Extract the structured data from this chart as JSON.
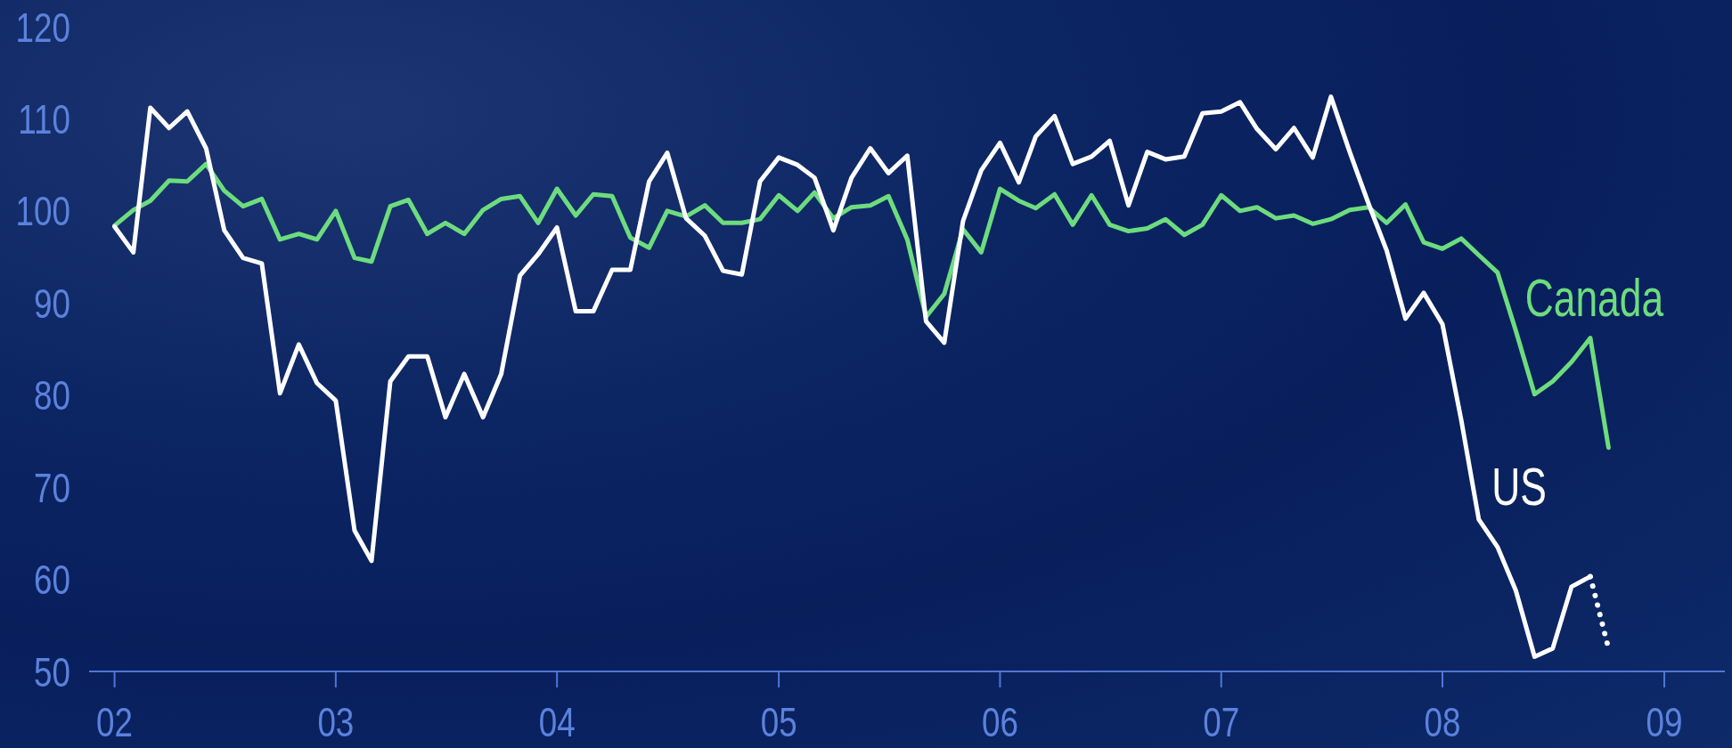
{
  "chart_data": {
    "type": "line",
    "x": [
      "2002-01",
      "2002-02",
      "2002-03",
      "2002-04",
      "2002-05",
      "2002-06",
      "2002-07",
      "2002-08",
      "2002-09",
      "2002-10",
      "2002-11",
      "2002-12",
      "2003-01",
      "2003-02",
      "2003-03",
      "2003-04",
      "2003-05",
      "2003-06",
      "2003-07",
      "2003-08",
      "2003-09",
      "2003-10",
      "2003-11",
      "2003-12",
      "2004-01",
      "2004-02",
      "2004-03",
      "2004-04",
      "2004-05",
      "2004-06",
      "2004-07",
      "2004-08",
      "2004-09",
      "2004-10",
      "2004-11",
      "2004-12",
      "2005-01",
      "2005-02",
      "2005-03",
      "2005-04",
      "2005-05",
      "2005-06",
      "2005-07",
      "2005-08",
      "2005-09",
      "2005-10",
      "2005-11",
      "2005-12",
      "2006-01",
      "2006-02",
      "2006-03",
      "2006-04",
      "2006-05",
      "2006-06",
      "2006-07",
      "2006-08",
      "2006-09",
      "2006-10",
      "2006-11",
      "2006-12",
      "2007-01",
      "2007-02",
      "2007-03",
      "2007-04",
      "2007-05",
      "2007-06",
      "2007-07",
      "2007-08",
      "2007-09",
      "2007-10",
      "2007-11",
      "2007-12",
      "2008-01",
      "2008-02",
      "2008-03",
      "2008-04",
      "2008-05",
      "2008-06",
      "2008-07",
      "2008-08",
      "2008-09",
      "2008-10"
    ],
    "series": [
      {
        "name": "Canada",
        "color": "#6ddc7e",
        "values": [
          98.4,
          100.1,
          101.1,
          103.3,
          103.2,
          105.1,
          102.2,
          100.5,
          101.3,
          96.9,
          97.5,
          96.9,
          100.0,
          94.9,
          94.5,
          100.5,
          101.2,
          97.5,
          98.7,
          97.5,
          100.1,
          101.3,
          101.6,
          98.7,
          102.4,
          99.5,
          101.8,
          101.6,
          97.1,
          96.0,
          100.0,
          99.4,
          100.6,
          98.7,
          98.7,
          99.1,
          101.7,
          100.0,
          102.0,
          99.2,
          100.4,
          100.6,
          101.6,
          96.9,
          88.5,
          91.0,
          98.0,
          95.5,
          102.4,
          101.1,
          100.3,
          101.8,
          98.5,
          101.7,
          98.5,
          97.8,
          98.1,
          99.1,
          97.4,
          98.5,
          101.7,
          100.0,
          100.4,
          99.2,
          99.5,
          98.6,
          99.1,
          100.1,
          100.4,
          98.7,
          100.7,
          96.6,
          95.9,
          97.0,
          95.2,
          93.3,
          87.0,
          80.1,
          81.5,
          83.6,
          86.2,
          74.3
        ]
      },
      {
        "name": "US",
        "color": "#ffffff",
        "values": [
          98.3,
          95.5,
          111.2,
          109.0,
          110.8,
          106.8,
          97.9,
          94.9,
          94.3,
          80.2,
          85.5,
          81.3,
          79.4,
          65.3,
          62.0,
          81.5,
          84.2,
          84.2,
          77.6,
          82.3,
          77.6,
          82.3,
          93.0,
          95.3,
          98.2,
          89.1,
          89.1,
          93.6,
          93.6,
          103.2,
          106.3,
          99.2,
          97.3,
          93.5,
          93.1,
          103.2,
          105.8,
          105.0,
          103.6,
          97.9,
          103.6,
          106.8,
          104.1,
          106.0,
          88.0,
          85.7,
          98.9,
          104.4,
          107.4,
          103.1,
          108.1,
          110.3,
          105.1,
          105.9,
          107.6,
          100.6,
          106.4,
          105.6,
          105.9,
          110.6,
          110.8,
          111.8,
          108.9,
          106.7,
          109.0,
          105.8,
          112.4,
          106.4,
          100.8,
          95.7,
          88.3,
          91.1,
          87.7,
          77.3,
          66.5,
          63.5,
          58.8,
          51.6,
          52.5,
          59.2,
          60.3,
          null
        ]
      },
      {
        "color": "#ffffff",
        "x": [
          "2008-09",
          "2008-10"
        ],
        "values": [
          60.3,
          52.5
        ],
        "line_style": "dotted"
      }
    ],
    "xlim": [
      "2001-11-20",
      "2009-04-11"
    ],
    "xticks": [
      {
        "value": "2002",
        "label": "02"
      },
      {
        "value": "2003",
        "label": "03"
      },
      {
        "value": "2004",
        "label": "04"
      },
      {
        "value": "2005",
        "label": "05"
      },
      {
        "value": "2006",
        "label": "06"
      },
      {
        "value": "2007",
        "label": "07"
      },
      {
        "value": "2008",
        "label": "08"
      },
      {
        "value": "2009",
        "label": "09"
      }
    ],
    "ylim": [
      50,
      120
    ],
    "yticks": [
      50,
      60,
      70,
      80,
      90,
      100,
      110,
      120
    ],
    "marker": "none",
    "line_style": "solid"
  }
}
